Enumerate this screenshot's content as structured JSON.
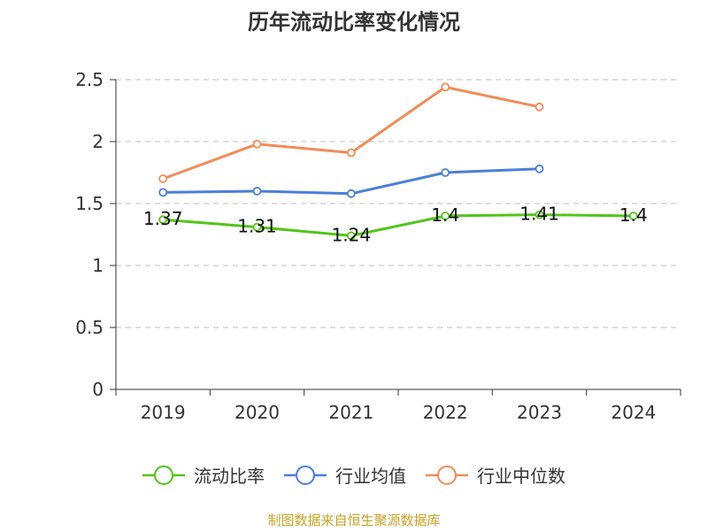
{
  "chart_data": {
    "type": "line",
    "title": "历年流动比率变化情况",
    "categories": [
      "2019",
      "2020",
      "2021",
      "2022",
      "2023",
      "2024"
    ],
    "y_ticks": [
      "0",
      "0.5",
      "1",
      "1.5",
      "2",
      "2.5"
    ],
    "ylim": [
      0,
      2.5
    ],
    "grid": true,
    "legend_position": "bottom",
    "series": [
      {
        "name": "流动比率",
        "color": "#52c41a",
        "values": [
          1.37,
          1.31,
          1.24,
          1.4,
          1.41,
          1.4
        ],
        "labels": [
          "1.37",
          "1.31",
          "1.24",
          "1.4",
          "1.41",
          "1.4"
        ]
      },
      {
        "name": "行业均值",
        "color": "#4a7fd9",
        "values": [
          1.59,
          1.6,
          1.58,
          1.75,
          1.78,
          null
        ]
      },
      {
        "name": "行业中位数",
        "color": "#f28c58",
        "values": [
          1.7,
          1.98,
          1.91,
          2.44,
          2.28,
          null
        ]
      }
    ]
  },
  "source": "制图数据来自恒生聚源数据库"
}
